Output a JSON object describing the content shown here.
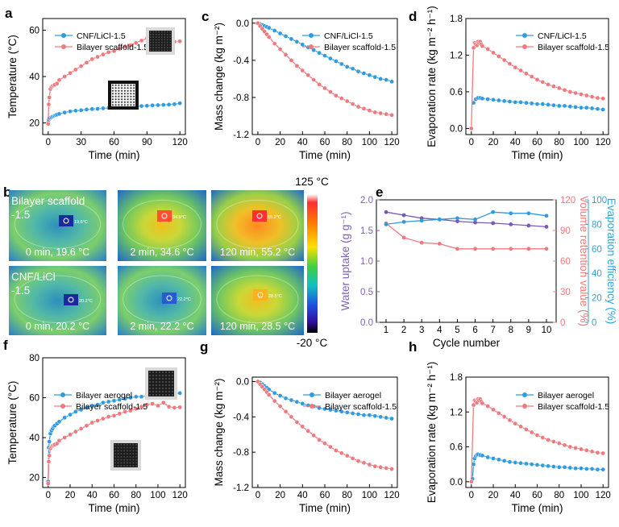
{
  "colors": {
    "blue": "#2f9be0",
    "red": "#ef7a7e",
    "purple": "#7a58b8",
    "purple_text": "#7f63b5",
    "salmon_text": "#f07c7c",
    "cyan_text": "#2aa5dc"
  },
  "panel_labels": {
    "a": "a",
    "b": "b",
    "c": "c",
    "d": "d",
    "e": "e",
    "f": "f",
    "g": "g",
    "h": "h"
  },
  "thermal": {
    "colorbar_max": "125 °C",
    "colorbar_min": "-20 °C",
    "row1_label": [
      "Bilayer scaffold",
      "-1.5"
    ],
    "row2_label": [
      "CNF/LiCl",
      "-1.5"
    ],
    "captions": [
      "0 min, 19.6 °C",
      "2 min, 34.6 °C",
      "120 min, 55.2 °C",
      "0 min, 20.2 °C",
      "2 min, 22.2 °C",
      "120 min, 28.5 °C"
    ],
    "spot_labels": [
      "19.6°C",
      "34.6°C",
      "55.2°C",
      "20.2°C",
      "22.2°C",
      "28.5°C"
    ]
  },
  "chart_data": [
    {
      "id": "a",
      "type": "line",
      "xlabel": "Time (min)",
      "ylabel": "Temperature (°C)",
      "xlim": [
        -5,
        125
      ],
      "ylim": [
        15,
        65
      ],
      "xticks": [
        0,
        30,
        60,
        90,
        120
      ],
      "yticks": [
        20,
        40,
        60
      ],
      "legend": "top-left",
      "insets": [
        "dark-scaffold-photo",
        "white-scaffold-photo"
      ],
      "series": [
        {
          "name": "CNF/LiCl-1.5",
          "color": "blue",
          "x": [
            0,
            0.5,
            1,
            2,
            3,
            4,
            5,
            6,
            7,
            8,
            10,
            15,
            20,
            25,
            30,
            35,
            40,
            45,
            50,
            55,
            60,
            65,
            70,
            75,
            80,
            85,
            90,
            95,
            100,
            105,
            110,
            115,
            120
          ],
          "y": [
            20.2,
            21.4,
            22,
            22.2,
            22.5,
            22.8,
            23,
            23.2,
            23.4,
            23.6,
            23.9,
            24.5,
            25,
            25.3,
            25.5,
            25.8,
            26,
            26.1,
            26.3,
            26.5,
            26.6,
            26.8,
            27,
            27.1,
            27.2,
            27.3,
            27.4,
            27.6,
            27.7,
            27.8,
            27.9,
            28.1,
            28.5
          ]
        },
        {
          "name": "Bilayer scaffold-1.5",
          "color": "red",
          "x": [
            0,
            0.5,
            1,
            2,
            3,
            4,
            5,
            6,
            8,
            10,
            15,
            20,
            25,
            30,
            35,
            40,
            45,
            50,
            55,
            60,
            65,
            70,
            75,
            80,
            85,
            90,
            95,
            100,
            105,
            110,
            115,
            120
          ],
          "y": [
            19.6,
            28,
            31,
            34.6,
            35.5,
            36,
            36.2,
            36.5,
            37,
            38.5,
            40,
            41.5,
            43,
            44.5,
            46,
            47.5,
            48.5,
            49.5,
            50.5,
            51,
            52,
            53,
            53.5,
            54.5,
            55.5,
            56.5,
            57,
            56,
            57.5,
            55.5,
            55,
            55.2
          ]
        }
      ]
    },
    {
      "id": "c",
      "type": "line",
      "xlabel": "Time (min)",
      "ylabel": "Mass change (kg m⁻²)",
      "xlim": [
        -5,
        125
      ],
      "ylim": [
        -1.2,
        0.05
      ],
      "xticks": [
        0,
        20,
        40,
        60,
        80,
        100,
        120
      ],
      "yticks": [
        0.0,
        -0.4,
        -0.8,
        -1.2
      ],
      "legend": "top-right",
      "series": [
        {
          "name": "CNF/LiCl-1.5",
          "color": "blue",
          "x": [
            0,
            2,
            4,
            6,
            8,
            10,
            15,
            20,
            25,
            30,
            35,
            40,
            45,
            50,
            55,
            60,
            65,
            70,
            75,
            80,
            85,
            90,
            95,
            100,
            105,
            110,
            115,
            120
          ],
          "y": [
            0,
            -0.01,
            -0.02,
            -0.03,
            -0.04,
            -0.05,
            -0.08,
            -0.11,
            -0.14,
            -0.17,
            -0.2,
            -0.23,
            -0.26,
            -0.29,
            -0.32,
            -0.35,
            -0.38,
            -0.41,
            -0.44,
            -0.47,
            -0.49,
            -0.52,
            -0.54,
            -0.56,
            -0.58,
            -0.6,
            -0.61,
            -0.63
          ]
        },
        {
          "name": "Bilayer scaffold-1.5",
          "color": "red",
          "x": [
            0,
            2,
            4,
            6,
            8,
            10,
            15,
            20,
            25,
            30,
            35,
            40,
            45,
            50,
            55,
            60,
            65,
            70,
            75,
            80,
            85,
            90,
            95,
            100,
            105,
            110,
            115,
            120
          ],
          "y": [
            0,
            -0.03,
            -0.06,
            -0.09,
            -0.12,
            -0.15,
            -0.22,
            -0.28,
            -0.34,
            -0.4,
            -0.46,
            -0.51,
            -0.56,
            -0.61,
            -0.66,
            -0.7,
            -0.74,
            -0.78,
            -0.81,
            -0.84,
            -0.87,
            -0.9,
            -0.92,
            -0.94,
            -0.96,
            -0.97,
            -0.98,
            -0.99
          ]
        }
      ]
    },
    {
      "id": "d",
      "type": "line",
      "xlabel": "Time (min)",
      "ylabel": "Evaporation rate (kg m⁻² h⁻¹)",
      "xlim": [
        -5,
        125
      ],
      "ylim": [
        -0.1,
        1.8
      ],
      "xticks": [
        0,
        20,
        40,
        60,
        80,
        100,
        120
      ],
      "yticks": [
        0.0,
        0.6,
        1.2,
        1.8
      ],
      "legend": "top-right",
      "series": [
        {
          "name": "CNF/LiCl-1.5",
          "color": "blue",
          "x": [
            2,
            4,
            6,
            8,
            10,
            15,
            20,
            25,
            30,
            35,
            40,
            45,
            50,
            55,
            60,
            65,
            70,
            75,
            80,
            85,
            90,
            95,
            100,
            105,
            110,
            115,
            120
          ],
          "y": [
            0.42,
            0.48,
            0.5,
            0.5,
            0.49,
            0.48,
            0.47,
            0.46,
            0.45,
            0.44,
            0.43,
            0.43,
            0.42,
            0.41,
            0.4,
            0.4,
            0.39,
            0.38,
            0.37,
            0.37,
            0.36,
            0.35,
            0.34,
            0.34,
            0.33,
            0.32,
            0.31
          ]
        },
        {
          "name": "Bilayer scaffold-1.5",
          "color": "red",
          "x": [
            0,
            2,
            3,
            4,
            5,
            6,
            7,
            8,
            9,
            10,
            15,
            20,
            25,
            30,
            35,
            40,
            45,
            50,
            55,
            60,
            65,
            70,
            75,
            80,
            85,
            90,
            95,
            100,
            105,
            110,
            115,
            120
          ],
          "y": [
            0.0,
            1.32,
            1.4,
            1.38,
            1.36,
            1.42,
            1.4,
            1.42,
            1.38,
            1.35,
            1.3,
            1.24,
            1.18,
            1.12,
            1.06,
            1.0,
            0.95,
            0.9,
            0.85,
            0.8,
            0.76,
            0.72,
            0.69,
            0.66,
            0.63,
            0.6,
            0.58,
            0.56,
            0.54,
            0.52,
            0.5,
            0.49
          ]
        }
      ]
    },
    {
      "id": "e",
      "type": "line",
      "xlabel": "Cycle number",
      "ylabel": "Water uptake (g g⁻¹)",
      "ylabel2": "Volume retention value (%)",
      "ylabel3": "Evaporation efficiency (%)",
      "categories": [
        1,
        2,
        3,
        4,
        5,
        6,
        7,
        8,
        9,
        10
      ],
      "ylim": [
        0,
        2.0
      ],
      "y2lim": [
        0,
        120
      ],
      "y3lim": [
        0,
        100
      ],
      "yticks": [
        0.0,
        0.5,
        1.0,
        1.5,
        2.0
      ],
      "y2ticks": [
        0,
        30,
        60,
        90,
        120
      ],
      "y3ticks": [
        0,
        20,
        40,
        60,
        80,
        100
      ],
      "series": [
        {
          "name": "Water uptake",
          "axis": "left",
          "color": "purple",
          "values": [
            1.8,
            1.75,
            1.7,
            1.68,
            1.65,
            1.63,
            1.62,
            1.6,
            1.58,
            1.56
          ]
        },
        {
          "name": "Volume retention value",
          "axis": "right1",
          "color": "red",
          "values": [
            97,
            83,
            78,
            77,
            72,
            72,
            72,
            72,
            72,
            72
          ]
        },
        {
          "name": "Evaporation efficiency",
          "axis": "right2",
          "color": "blue",
          "values": [
            80,
            82,
            83,
            84,
            85,
            84,
            90,
            89,
            89,
            87
          ]
        }
      ]
    },
    {
      "id": "f",
      "type": "line",
      "xlabel": "Time (min)",
      "ylabel": "Temperature (°C)",
      "xlim": [
        -5,
        125
      ],
      "ylim": [
        15,
        80
      ],
      "xticks": [
        0,
        20,
        40,
        60,
        80,
        100,
        120
      ],
      "yticks": [
        20,
        40,
        60,
        80
      ],
      "legend": "top-left",
      "insets": [
        "black-aerogel-photo",
        "black-scaffold-photo"
      ],
      "series": [
        {
          "name": "Bilayer aerogel",
          "color": "blue",
          "x": [
            0,
            0.5,
            1,
            2,
            3,
            4,
            5,
            6,
            8,
            10,
            15,
            20,
            25,
            30,
            35,
            40,
            45,
            50,
            55,
            60,
            65,
            70,
            75,
            80,
            85,
            90,
            95,
            100,
            105,
            110,
            115,
            120
          ],
          "y": [
            18,
            35,
            38,
            42,
            43.5,
            44.5,
            45.5,
            46,
            47,
            48,
            50,
            51.5,
            53,
            54,
            55,
            56,
            56.5,
            57.5,
            58,
            58.5,
            59,
            59.5,
            60,
            60.5,
            60.5,
            61,
            61,
            61.5,
            61.5,
            62,
            62,
            62.3
          ]
        },
        {
          "name": "Bilayer scaffold-1.5",
          "color": "red",
          "x": [
            0,
            0.5,
            1,
            2,
            3,
            4,
            5,
            6,
            8,
            10,
            15,
            20,
            25,
            30,
            35,
            40,
            45,
            50,
            55,
            60,
            65,
            70,
            75,
            80,
            85,
            90,
            95,
            100,
            105,
            110,
            115,
            120
          ],
          "y": [
            17,
            28,
            31,
            34.6,
            35.5,
            36,
            36.2,
            36.5,
            37,
            38.5,
            40,
            41.5,
            43,
            44.5,
            46,
            47.5,
            48.5,
            49.5,
            50.5,
            51,
            52,
            53,
            53.5,
            54.5,
            55.5,
            56.5,
            57,
            56,
            57.5,
            55.5,
            55,
            55.2
          ]
        }
      ]
    },
    {
      "id": "g",
      "type": "line",
      "xlabel": "Time (min)",
      "ylabel": "Mass change (kg m⁻²)",
      "xlim": [
        -5,
        125
      ],
      "ylim": [
        -1.2,
        0.05
      ],
      "xticks": [
        0,
        20,
        40,
        60,
        80,
        100,
        120
      ],
      "yticks": [
        0.0,
        -0.4,
        -0.8,
        -1.2
      ],
      "legend": "top-right",
      "series": [
        {
          "name": "Bilayer aerogel",
          "color": "blue",
          "x": [
            0,
            2,
            4,
            6,
            8,
            10,
            15,
            20,
            25,
            30,
            35,
            40,
            45,
            50,
            55,
            60,
            65,
            70,
            75,
            80,
            85,
            90,
            95,
            100,
            105,
            110,
            115,
            120
          ],
          "y": [
            0,
            -0.01,
            -0.03,
            -0.05,
            -0.07,
            -0.09,
            -0.13,
            -0.16,
            -0.19,
            -0.21,
            -0.23,
            -0.25,
            -0.27,
            -0.28,
            -0.3,
            -0.31,
            -0.32,
            -0.33,
            -0.34,
            -0.35,
            -0.36,
            -0.37,
            -0.38,
            -0.38,
            -0.39,
            -0.4,
            -0.41,
            -0.42
          ]
        },
        {
          "name": "Bilayer scaffold-1.5",
          "color": "red",
          "x": [
            0,
            2,
            4,
            6,
            8,
            10,
            15,
            20,
            25,
            30,
            35,
            40,
            45,
            50,
            55,
            60,
            65,
            70,
            75,
            80,
            85,
            90,
            95,
            100,
            105,
            110,
            115,
            120
          ],
          "y": [
            0,
            -0.03,
            -0.06,
            -0.09,
            -0.12,
            -0.15,
            -0.22,
            -0.28,
            -0.34,
            -0.4,
            -0.46,
            -0.51,
            -0.56,
            -0.61,
            -0.66,
            -0.7,
            -0.74,
            -0.78,
            -0.81,
            -0.84,
            -0.87,
            -0.9,
            -0.92,
            -0.94,
            -0.96,
            -0.97,
            -0.98,
            -0.99
          ]
        }
      ]
    },
    {
      "id": "h",
      "type": "line",
      "xlabel": "Time (min)",
      "ylabel": "Evaporation rate (kg m⁻² h⁻¹)",
      "xlim": [
        -5,
        125
      ],
      "ylim": [
        -0.1,
        1.8
      ],
      "xticks": [
        0,
        20,
        40,
        60,
        80,
        100,
        120
      ],
      "yticks": [
        0.0,
        0.6,
        1.2,
        1.8
      ],
      "legend": "top-right",
      "series": [
        {
          "name": "Bilayer aerogel",
          "color": "blue",
          "x": [
            1,
            2,
            3,
            4,
            5,
            6,
            8,
            10,
            15,
            20,
            25,
            30,
            35,
            40,
            45,
            50,
            55,
            60,
            65,
            70,
            75,
            80,
            85,
            90,
            95,
            100,
            105,
            110,
            115,
            120
          ],
          "y": [
            0.05,
            0.3,
            0.4,
            0.44,
            0.46,
            0.47,
            0.46,
            0.45,
            0.42,
            0.4,
            0.38,
            0.36,
            0.34,
            0.33,
            0.32,
            0.31,
            0.3,
            0.29,
            0.28,
            0.27,
            0.26,
            0.25,
            0.25,
            0.24,
            0.23,
            0.23,
            0.22,
            0.22,
            0.21,
            0.21
          ]
        },
        {
          "name": "Bilayer scaffold-1.5",
          "color": "red",
          "x": [
            0,
            2,
            3,
            4,
            5,
            6,
            7,
            8,
            9,
            10,
            15,
            20,
            25,
            30,
            35,
            40,
            45,
            50,
            55,
            60,
            65,
            70,
            75,
            80,
            85,
            90,
            95,
            100,
            105,
            110,
            115,
            120
          ],
          "y": [
            0.0,
            1.32,
            1.4,
            1.38,
            1.36,
            1.42,
            1.4,
            1.42,
            1.38,
            1.35,
            1.3,
            1.24,
            1.18,
            1.12,
            1.06,
            1.0,
            0.95,
            0.9,
            0.85,
            0.8,
            0.76,
            0.72,
            0.69,
            0.66,
            0.63,
            0.6,
            0.58,
            0.56,
            0.54,
            0.52,
            0.5,
            0.49
          ]
        }
      ]
    }
  ]
}
